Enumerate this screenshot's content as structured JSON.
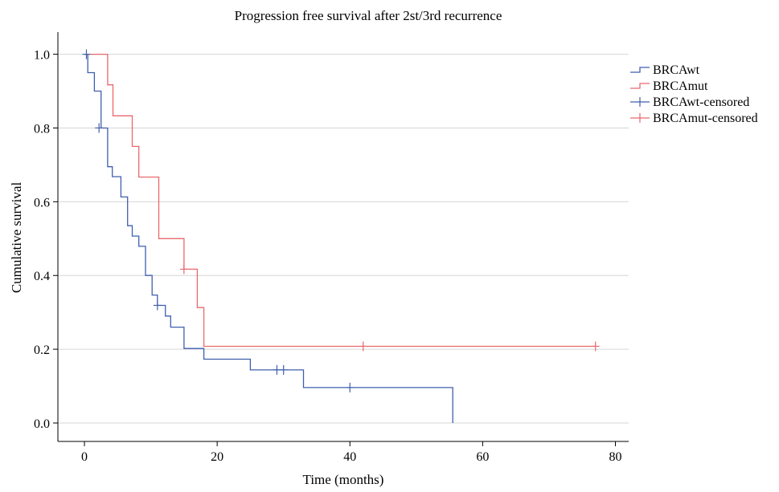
{
  "chart_data": {
    "type": "line",
    "title": "Progression free survival after 2st/3rd recurrence",
    "xlabel": "Time (months)",
    "ylabel": "Cumulative survival",
    "xlim": [
      -4,
      82
    ],
    "ylim": [
      -0.05,
      1.06
    ],
    "x_ticks": [
      0,
      20,
      40,
      60,
      80
    ],
    "x_tick_labels": [
      "0",
      "20",
      "40",
      "60",
      "80"
    ],
    "y_ticks": [
      0.0,
      0.2,
      0.4,
      0.6,
      0.8,
      1.0
    ],
    "y_tick_labels": [
      "0.0",
      "0.2",
      "0.4",
      "0.6",
      "0.8",
      "1.0"
    ],
    "grid": "horizontal",
    "legend_position": "top-right",
    "step_style": "post",
    "series": [
      {
        "name": "BRCAwt",
        "color": "#3f5fae",
        "points": [
          [
            0,
            1.0
          ],
          [
            0.5,
            1.0
          ],
          [
            0.5,
            0.95
          ],
          [
            1.5,
            0.95
          ],
          [
            1.5,
            0.9
          ],
          [
            2.5,
            0.9
          ],
          [
            2.5,
            0.8
          ],
          [
            3.5,
            0.8
          ],
          [
            3.5,
            0.695
          ],
          [
            4.2,
            0.695
          ],
          [
            4.2,
            0.668
          ],
          [
            5.5,
            0.668
          ],
          [
            5.5,
            0.613
          ],
          [
            6.5,
            0.613
          ],
          [
            6.5,
            0.535
          ],
          [
            7.2,
            0.535
          ],
          [
            7.2,
            0.507
          ],
          [
            8.2,
            0.507
          ],
          [
            8.2,
            0.479
          ],
          [
            9.2,
            0.479
          ],
          [
            9.2,
            0.4
          ],
          [
            10.2,
            0.4
          ],
          [
            10.2,
            0.347
          ],
          [
            11.0,
            0.347
          ],
          [
            11.0,
            0.319
          ],
          [
            12.2,
            0.319
          ],
          [
            12.2,
            0.29
          ],
          [
            13.0,
            0.29
          ],
          [
            13.0,
            0.26
          ],
          [
            15.0,
            0.26
          ],
          [
            15.0,
            0.202
          ],
          [
            18.0,
            0.202
          ],
          [
            18.0,
            0.173
          ],
          [
            25.0,
            0.173
          ],
          [
            25.0,
            0.144
          ],
          [
            33.0,
            0.144
          ],
          [
            33.0,
            0.096
          ],
          [
            55.5,
            0.096
          ],
          [
            55.5,
            0.0
          ]
        ]
      },
      {
        "name": "BRCAmut",
        "color": "#e8696d",
        "points": [
          [
            0,
            1.0
          ],
          [
            3.5,
            1.0
          ],
          [
            3.5,
            0.917
          ],
          [
            4.3,
            0.917
          ],
          [
            4.3,
            0.833
          ],
          [
            7.2,
            0.833
          ],
          [
            7.2,
            0.75
          ],
          [
            8.2,
            0.75
          ],
          [
            8.2,
            0.667
          ],
          [
            11.2,
            0.667
          ],
          [
            11.2,
            0.5
          ],
          [
            15.0,
            0.5
          ],
          [
            15.0,
            0.417
          ],
          [
            17.0,
            0.417
          ],
          [
            17.0,
            0.313
          ],
          [
            18.0,
            0.313
          ],
          [
            18.0,
            0.208
          ],
          [
            77.0,
            0.208
          ]
        ]
      },
      {
        "name": "BRCAwt-censored",
        "color": "#3f5fae",
        "censor_points": [
          [
            0.3,
            1.0
          ],
          [
            2.2,
            0.8
          ],
          [
            11.0,
            0.319
          ],
          [
            29.0,
            0.144
          ],
          [
            30.0,
            0.144
          ],
          [
            40.0,
            0.096
          ]
        ]
      },
      {
        "name": "BRCAmut-censored",
        "color": "#e8696d",
        "censor_points": [
          [
            15.0,
            0.417
          ],
          [
            42.0,
            0.208
          ],
          [
            77.0,
            0.208
          ]
        ]
      }
    ]
  }
}
